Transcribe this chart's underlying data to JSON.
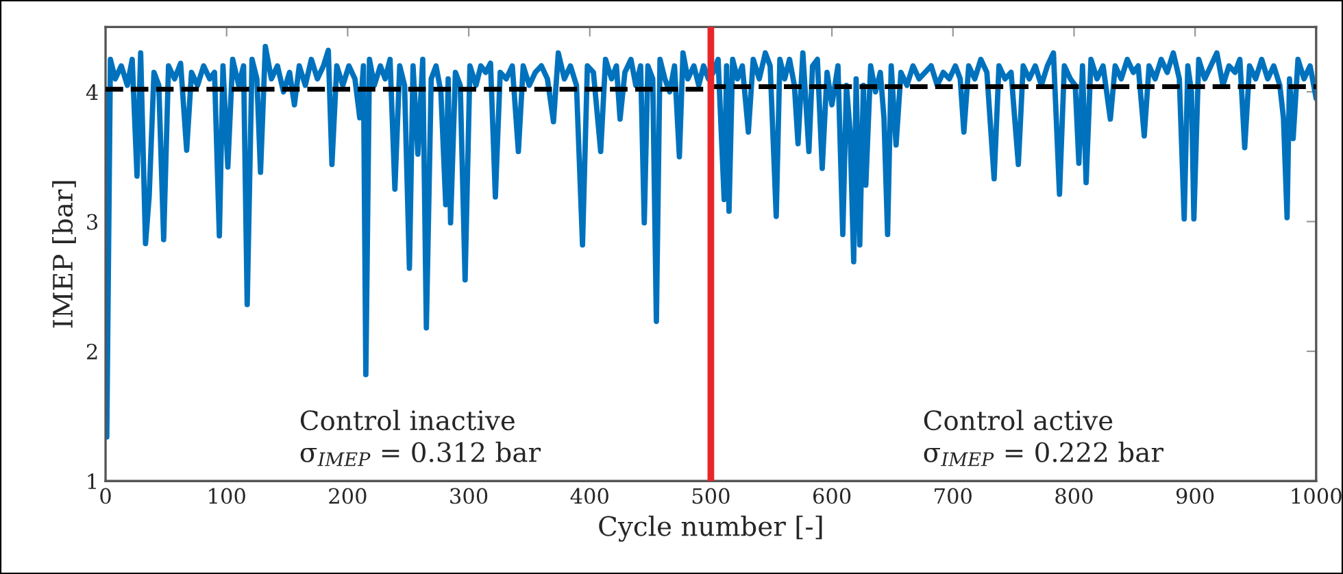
{
  "chart_data": {
    "type": "line",
    "xlabel": "Cycle number [-]",
    "ylabel": "IMEP [bar]",
    "xlim": [
      0,
      1000
    ],
    "ylim": [
      1,
      4.5
    ],
    "xticks": [
      0,
      100,
      200,
      300,
      400,
      500,
      600,
      700,
      800,
      900,
      1000
    ],
    "yticks": [
      1,
      2,
      3,
      4
    ],
    "grid": false,
    "marker": "none",
    "series": [
      {
        "color": "#0072bd",
        "line_style": "solid",
        "x": [
          0,
          1,
          4,
          8,
          13,
          18,
          22,
          26,
          29,
          33,
          36,
          40,
          44,
          48,
          52,
          57,
          62,
          67,
          71,
          76,
          81,
          86,
          90,
          94,
          97,
          101,
          105,
          110,
          114,
          117,
          121,
          125,
          128,
          132,
          137,
          142,
          147,
          152,
          156,
          160,
          165,
          170,
          175,
          180,
          184,
          187,
          191,
          196,
          201,
          206,
          210,
          213,
          215,
          218,
          222,
          227,
          231,
          235,
          239,
          243,
          247,
          251,
          254,
          258,
          262,
          265,
          269,
          273,
          277,
          281,
          283,
          285,
          289,
          293,
          297,
          301,
          306,
          310,
          314,
          318,
          322,
          326,
          331,
          336,
          341,
          345,
          350,
          355,
          360,
          365,
          370,
          374,
          379,
          384,
          389,
          394,
          398,
          403,
          409,
          413,
          418,
          422,
          425,
          429,
          434,
          438,
          442,
          445,
          448,
          452,
          455,
          458,
          462,
          466,
          470,
          474,
          477,
          481,
          486,
          490,
          494,
          498,
          502,
          506,
          511,
          513,
          515,
          518,
          522,
          526,
          531,
          535,
          540,
          545,
          549,
          554,
          557,
          561,
          565,
          569,
          572,
          576,
          581,
          584,
          588,
          592,
          596,
          600,
          605,
          609,
          612,
          615,
          618,
          620,
          623,
          626,
          628,
          632,
          636,
          640,
          643,
          646,
          649,
          653,
          657,
          662,
          667,
          672,
          677,
          682,
          687,
          692,
          697,
          702,
          706,
          709,
          713,
          718,
          723,
          728,
          734,
          738,
          743,
          748,
          754,
          758,
          763,
          768,
          773,
          778,
          783,
          788,
          792,
          797,
          801,
          804,
          807,
          810,
          814,
          819,
          824,
          830,
          834,
          839,
          844,
          849,
          853,
          858,
          862,
          867,
          872,
          877,
          882,
          887,
          891,
          894,
          897,
          899,
          903,
          908,
          913,
          918,
          923,
          928,
          933,
          937,
          941,
          945,
          950,
          955,
          960,
          965,
          970,
          973,
          976,
          978,
          981,
          985,
          990,
          995,
          1000
        ],
        "values": [
          4.02,
          1.34,
          4.25,
          4.1,
          4.2,
          4.05,
          4.25,
          3.35,
          4.3,
          2.83,
          3.19,
          4.15,
          4.05,
          2.86,
          4.2,
          4.1,
          4.22,
          3.55,
          4.15,
          4.05,
          4.2,
          4.1,
          4.15,
          2.89,
          4.2,
          3.42,
          4.25,
          4.05,
          4.2,
          2.36,
          4.25,
          4.1,
          3.38,
          4.35,
          4.1,
          4.2,
          4.0,
          4.15,
          3.9,
          4.2,
          4.05,
          4.25,
          4.1,
          4.2,
          4.32,
          3.44,
          4.2,
          4.05,
          4.2,
          4.1,
          3.8,
          4.2,
          1.82,
          4.25,
          4.05,
          4.2,
          4.1,
          4.25,
          3.25,
          4.2,
          4.05,
          2.64,
          4.2,
          3.52,
          4.25,
          2.18,
          4.1,
          4.2,
          4.0,
          3.13,
          4.1,
          2.99,
          4.15,
          4.05,
          2.55,
          4.2,
          4.05,
          4.2,
          4.15,
          4.22,
          3.19,
          4.15,
          4.1,
          4.2,
          3.54,
          4.2,
          4.05,
          4.15,
          4.2,
          4.1,
          3.77,
          4.3,
          4.1,
          4.2,
          4.05,
          2.82,
          4.2,
          4.15,
          3.54,
          4.25,
          4.1,
          4.2,
          3.79,
          4.15,
          4.25,
          4.05,
          4.2,
          2.99,
          4.2,
          4.1,
          2.23,
          4.25,
          4.1,
          4.0,
          4.2,
          3.5,
          4.3,
          4.1,
          4.2,
          4.05,
          4.2,
          4.1,
          4.15,
          4.25,
          3.17,
          4.2,
          3.08,
          4.25,
          4.1,
          4.2,
          3.69,
          4.25,
          4.1,
          4.3,
          4.2,
          3.04,
          4.25,
          4.1,
          4.25,
          4.05,
          3.6,
          4.3,
          3.54,
          4.2,
          4.25,
          3.41,
          4.15,
          3.9,
          4.2,
          2.9,
          4.05,
          3.7,
          2.69,
          4.1,
          2.82,
          4.05,
          3.28,
          4.2,
          4.0,
          4.15,
          3.8,
          2.9,
          4.2,
          3.59,
          4.15,
          4.05,
          4.2,
          4.1,
          4.15,
          4.2,
          4.05,
          4.15,
          4.1,
          4.2,
          4.1,
          3.69,
          4.2,
          4.1,
          4.25,
          4.15,
          3.33,
          4.2,
          4.1,
          4.15,
          3.44,
          4.2,
          4.1,
          4.2,
          4.05,
          4.2,
          4.3,
          3.21,
          4.2,
          4.1,
          4.05,
          3.45,
          4.2,
          3.3,
          4.25,
          4.1,
          4.2,
          3.79,
          4.2,
          4.1,
          4.25,
          4.15,
          4.2,
          3.66,
          4.2,
          4.1,
          4.25,
          4.15,
          4.3,
          4.1,
          3.02,
          4.2,
          4.0,
          3.02,
          4.25,
          4.1,
          4.2,
          4.3,
          4.05,
          4.2,
          4.15,
          4.25,
          3.57,
          4.2,
          4.1,
          4.25,
          4.1,
          4.2,
          4.05,
          3.8,
          3.03,
          4.1,
          3.64,
          4.25,
          4.1,
          4.2,
          3.95
        ]
      },
      {
        "color": "#000000",
        "line_style": "dashed",
        "x": [
          0,
          500,
          500,
          1000
        ],
        "values": [
          4.02,
          4.02,
          4.04,
          4.04
        ]
      }
    ],
    "ref_lines": [
      {
        "axis": "x",
        "value": 500,
        "color": "#e8262a",
        "line_style": "solid"
      }
    ],
    "annotations": [
      "Control inactive\nσ$_{IMEP}$ = 0.312 bar",
      "Control active\nσ$_{IMEP}$ = 0.222 bar"
    ]
  }
}
